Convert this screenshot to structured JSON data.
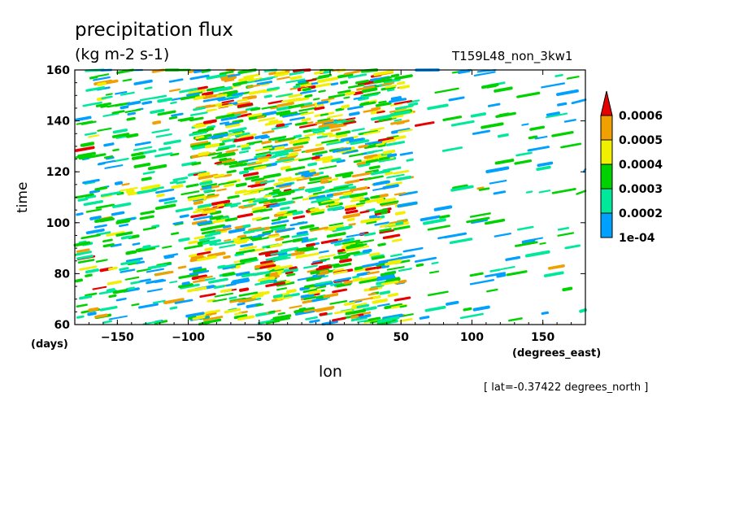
{
  "chart_data": {
    "type": "heatmap",
    "title": "precipitation flux",
    "units": "(kg m-2 s-1)",
    "run_label": "T159L48_non_3kw1",
    "xlabel": "lon",
    "x_units": "(degrees_east)",
    "ylabel": "time",
    "y_units": "(days)",
    "annotation": "[ lat=-0.37422 degrees_north ]",
    "xlim": [
      -180,
      180
    ],
    "ylim": [
      60,
      160
    ],
    "x_ticks": [
      -150,
      -100,
      -50,
      0,
      50,
      100,
      150
    ],
    "x_tick_labels": [
      "−150",
      "−100",
      "−50",
      "0",
      "50",
      "100",
      "150"
    ],
    "y_ticks": [
      60,
      80,
      100,
      120,
      140,
      160
    ],
    "y_tick_labels": [
      "60",
      "80",
      "100",
      "120",
      "140",
      "160"
    ],
    "colorbar": {
      "levels": [
        0.0001,
        0.0002,
        0.0003,
        0.0004,
        0.0005,
        0.0006
      ],
      "level_labels": [
        "1e-04",
        "0.0002",
        "0.0003",
        "0.0004",
        "0.0005",
        "0.0006"
      ],
      "colors": [
        "#00a0ff",
        "#00e89a",
        "#00d200",
        "#f0f000",
        "#f0a000",
        "#e60000"
      ],
      "extend": "max"
    },
    "lon_bands": [
      {
        "lon_range": [
          -180,
          -100
        ],
        "level": "mostly below 1e-04 to 0.0003, scattered"
      },
      {
        "lon_range": [
          -100,
          50
        ],
        "level": "frequent 0.0003 to above 0.0006, dense"
      },
      {
        "lon_range": [
          50,
          180
        ],
        "level": "sparse streaks near 1e-04 to 0.0002"
      }
    ]
  }
}
